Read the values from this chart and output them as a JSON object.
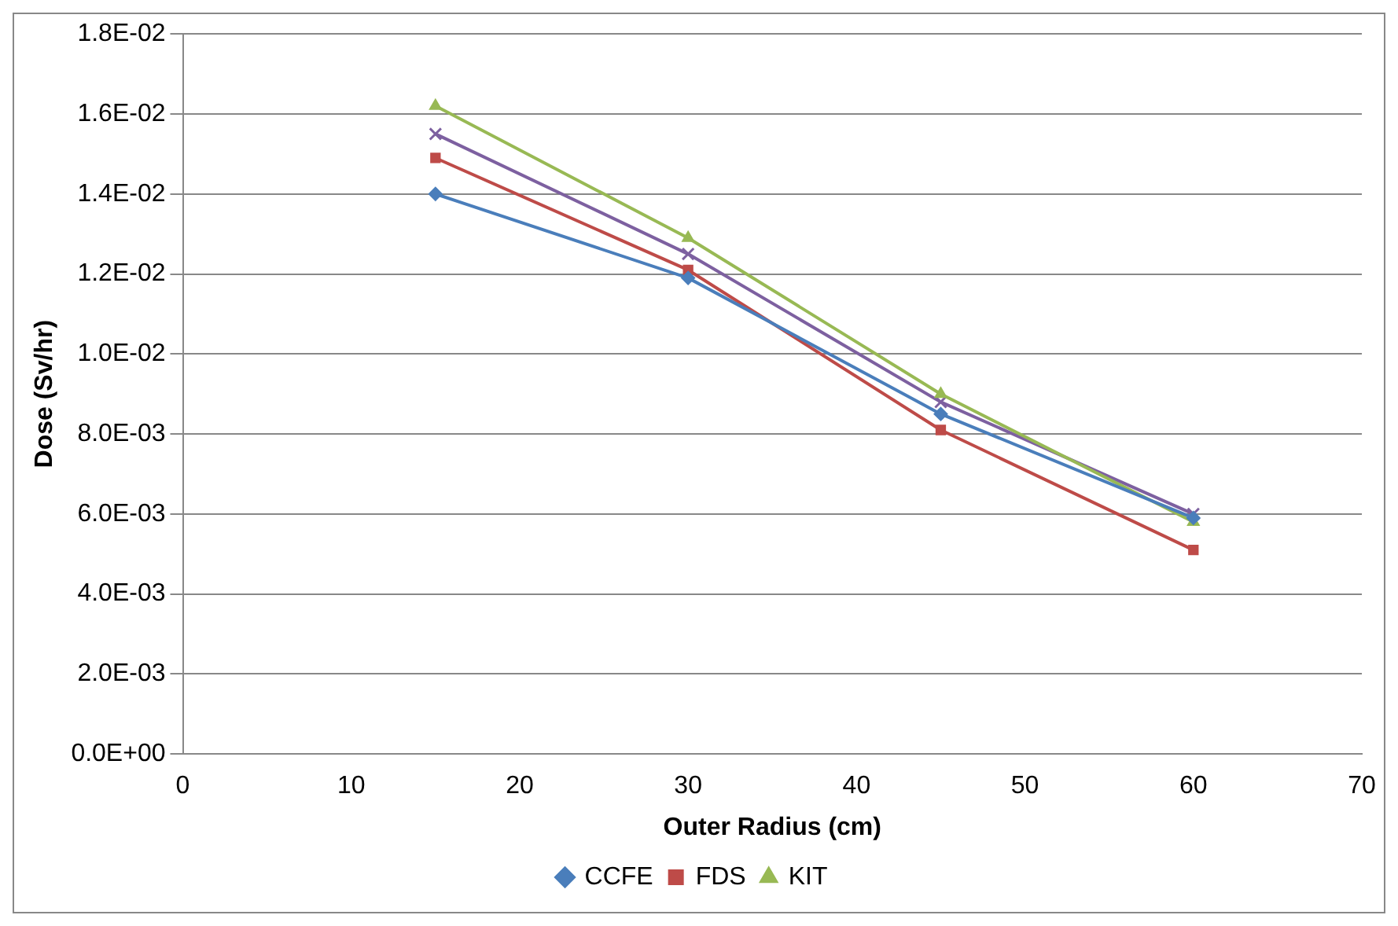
{
  "chart_data": {
    "type": "line",
    "xlabel": "Outer Radius (cm)",
    "ylabel": "Dose (Sv/hr)",
    "x": [
      15,
      30,
      45,
      60
    ],
    "series": [
      {
        "name": "CCFE",
        "color": "#4a7ebb",
        "marker": "diamond",
        "values": [
          0.014,
          0.0119,
          0.0085,
          0.0059
        ]
      },
      {
        "name": "FDS",
        "color": "#be4b48",
        "marker": "square",
        "values": [
          0.0149,
          0.0121,
          0.0081,
          0.0051
        ]
      },
      {
        "name": "KIT",
        "color": "#98b954",
        "marker": "triangle",
        "values": [
          0.0162,
          0.0129,
          0.009,
          0.0058
        ]
      },
      {
        "color": "#7d60a0",
        "marker": "cross",
        "values": [
          0.0155,
          0.0125,
          0.0088,
          0.006
        ]
      }
    ],
    "xlim": [
      0,
      70
    ],
    "xticks": [
      0,
      10,
      20,
      30,
      40,
      50,
      60,
      70
    ],
    "ylim": [
      0,
      0.018
    ],
    "yticks": [
      {
        "value": 0,
        "label": "0.0E+00"
      },
      {
        "value": 0.002,
        "label": "2.0E-03"
      },
      {
        "value": 0.004,
        "label": "4.0E-03"
      },
      {
        "value": 0.006,
        "label": "6.0E-03"
      },
      {
        "value": 0.008,
        "label": "8.0E-03"
      },
      {
        "value": 0.01,
        "label": "1.0E-02"
      },
      {
        "value": 0.012,
        "label": "1.2E-02"
      },
      {
        "value": 0.014,
        "label": "1.4E-02"
      },
      {
        "value": 0.016,
        "label": "1.6E-02"
      },
      {
        "value": 0.018,
        "label": "1.8E-02"
      }
    ],
    "grid": "y",
    "legend": "bottom",
    "line_style": "solid"
  }
}
